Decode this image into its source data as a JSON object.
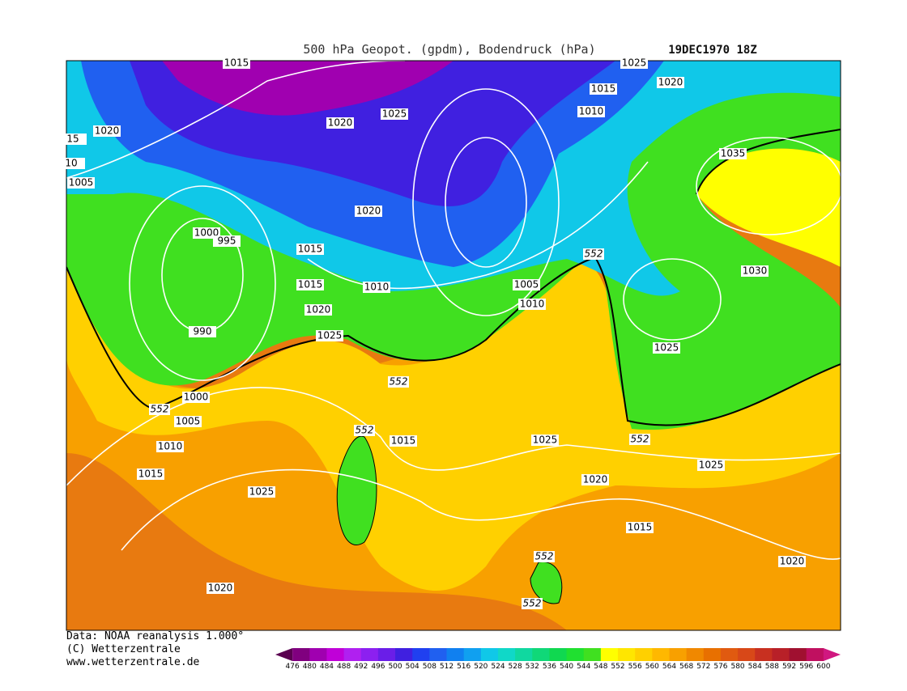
{
  "header": {
    "title": "500 hPa Geopot. (gpdm), Bodendruck (hPa)",
    "date": "19DEC1970 18Z"
  },
  "isobar_labels": [
    "1015",
    "1025",
    "1020",
    "1015",
    "1010",
    "1020",
    "15",
    "10",
    "1005",
    "1020",
    "1025",
    "1035",
    "1020",
    "1000",
    "995",
    "1015",
    "1015",
    "1010",
    "1005",
    "1010",
    "1030",
    "1020",
    "990",
    "1025",
    "1025",
    "1000",
    "1005",
    "1010",
    "1015",
    "1025",
    "1015",
    "1025",
    "1020",
    "1025",
    "1015",
    "1020",
    "1020"
  ],
  "contour_labels": [
    "552",
    "552",
    "552",
    "552",
    "552",
    "552",
    "552"
  ],
  "footer": {
    "lines": [
      "Data: NOAA reanalysis 1.000°",
      "(C) Wetterzentrale",
      "www.wetterzentrale.de"
    ]
  },
  "colorbar": {
    "ticks": [
      476,
      480,
      484,
      488,
      492,
      496,
      500,
      504,
      508,
      512,
      516,
      520,
      524,
      528,
      532,
      536,
      540,
      544,
      548,
      552,
      556,
      560,
      564,
      568,
      572,
      576,
      580,
      584,
      588,
      592,
      596,
      600
    ],
    "colors": [
      "#5a0050",
      "#80007f",
      "#a000b0",
      "#c000d8",
      "#b020f0",
      "#8c20f0",
      "#6a1ee8",
      "#4020e0",
      "#2040f0",
      "#2060f0",
      "#1080f0",
      "#10a0f0",
      "#10c8e8",
      "#10d8c8",
      "#10d8a0",
      "#10d878",
      "#10d850",
      "#20e030",
      "#40e020",
      "#ffff00",
      "#ffe600",
      "#ffd000",
      "#ffb800",
      "#f8a000",
      "#f08800",
      "#e87000",
      "#e05a10",
      "#d84818",
      "#c83020",
      "#b82028",
      "#a01030",
      "#c01060",
      "#d01880"
    ]
  }
}
